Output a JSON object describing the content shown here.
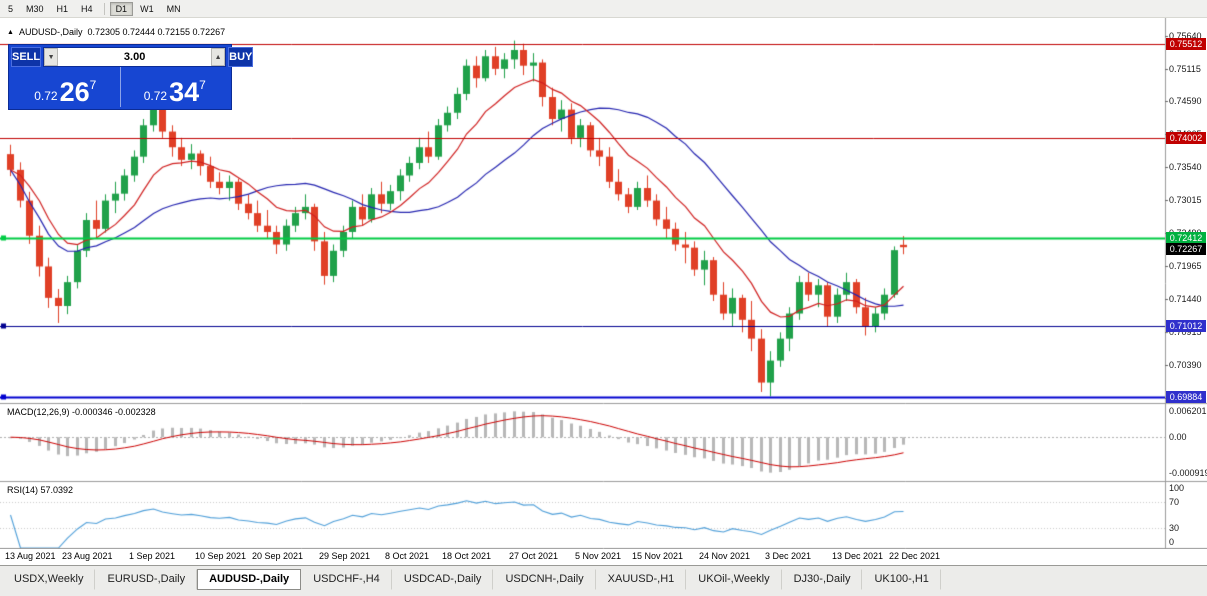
{
  "colors": {
    "candle_up": "#20a14a",
    "candle_down": "#e03f26",
    "ma_fast": "#d02020",
    "ma_slow": "#2424b0",
    "macd_hist": "#b8b8b8",
    "macd_signal": "#cc0000",
    "rsi_line": "#4f9fd9"
  },
  "toolbar": {
    "periods": [
      {
        "label": "5",
        "active": false
      },
      {
        "label": "M30",
        "active": false
      },
      {
        "label": "H1",
        "active": false
      },
      {
        "label": "H4",
        "active": false
      },
      {
        "label": "D1",
        "active": true
      },
      {
        "label": "W1",
        "active": false
      },
      {
        "label": "MN",
        "active": false
      }
    ]
  },
  "chart_header": {
    "direction_icon": "▲",
    "symbol": "AUDUSD-,Daily",
    "ohlc_text": "0.72305 0.72444 0.72155 0.72267"
  },
  "trade_panel": {
    "sell_label": "SELL",
    "buy_label": "BUY",
    "volume": "3.00",
    "sell_price": {
      "base": "0.72",
      "pips": "26",
      "point": "7"
    },
    "buy_price": {
      "base": "0.72",
      "pips": "34",
      "point": "7"
    }
  },
  "indicators": {
    "macd": {
      "label": "MACD(12,26,9) -0.000346 -0.002328",
      "fast": 12,
      "slow": 26,
      "signal_period": 9,
      "scale": [
        "0.006201",
        "0.00",
        "-0.000919"
      ]
    },
    "rsi": {
      "label": "RSI(14) 57.0392",
      "period": 14,
      "levels": [
        70,
        30
      ],
      "scale": [
        "100",
        "70",
        "30",
        "0"
      ]
    }
  },
  "price_scale": {
    "labels": [
      "0.75640",
      "0.75115",
      "0.74590",
      "0.74065",
      "0.73540",
      "0.73015",
      "0.72490",
      "0.71965",
      "0.71440",
      "0.70915",
      "0.70390",
      "0.69865"
    ]
  },
  "levels": [
    {
      "price": "0.75512",
      "color": "#c00000",
      "width": 1,
      "tag_bg": "#c00000",
      "marker": false
    },
    {
      "price": "0.74002",
      "color": "#c00000",
      "width": 1,
      "tag_bg": "#c00000",
      "marker": false
    },
    {
      "price": "0.72412",
      "color": "#00cc44",
      "width": 2,
      "tag_bg": "#00b140",
      "marker": true
    },
    {
      "price": "0.71012",
      "color": "#000090",
      "width": 1,
      "tag_bg": "#3030cc",
      "marker": true
    },
    {
      "price": "0.69884",
      "color": "#0000d0",
      "width": 2,
      "tag_bg": "#3030cc",
      "marker": true
    }
  ],
  "current_price_tag": {
    "price": "0.72267",
    "bg": "#000000"
  },
  "time_axis": [
    {
      "label": "13 Aug 2021",
      "index": 0
    },
    {
      "label": "23 Aug 2021",
      "index": 6
    },
    {
      "label": "1 Sep 2021",
      "index": 13
    },
    {
      "label": "10 Sep 2021",
      "index": 20
    },
    {
      "label": "20 Sep 2021",
      "index": 26
    },
    {
      "label": "29 Sep 2021",
      "index": 33
    },
    {
      "label": "8 Oct 2021",
      "index": 40
    },
    {
      "label": "18 Oct 2021",
      "index": 46
    },
    {
      "label": "27 Oct 2021",
      "index": 53
    },
    {
      "label": "5 Nov 2021",
      "index": 60
    },
    {
      "label": "15 Nov 2021",
      "index": 66
    },
    {
      "label": "24 Nov 2021",
      "index": 73
    },
    {
      "label": "3 Dec 2021",
      "index": 80
    },
    {
      "label": "13 Dec 2021",
      "index": 87
    },
    {
      "label": "22 Dec 2021",
      "index": 93
    }
  ],
  "tabs": [
    {
      "label": "USDX,Weekly",
      "active": false
    },
    {
      "label": "EURUSD-,Daily",
      "active": false
    },
    {
      "label": "AUDUSD-,Daily",
      "active": true
    },
    {
      "label": "USDCHF-,H4",
      "active": false
    },
    {
      "label": "USDCAD-,Daily",
      "active": false
    },
    {
      "label": "USDCNH-,Daily",
      "active": false
    },
    {
      "label": "XAUUSD-,H1",
      "active": false
    },
    {
      "label": "UKOil-,Weekly",
      "active": false
    },
    {
      "label": "DJ30-,Daily",
      "active": false
    },
    {
      "label": "UK100-,H1",
      "active": false
    }
  ],
  "chart_data": {
    "type": "candlestick",
    "symbol": "AUDUSD-",
    "timeframe": "Daily",
    "ohlc_current": {
      "open": 0.72305,
      "high": 0.72444,
      "low": 0.72155,
      "close": 0.72267
    },
    "y_range": [
      0.698,
      0.7592
    ],
    "ma_fast_period": 10,
    "ma_slow_period": 22,
    "candles": [
      [
        0.7375,
        0.739,
        0.734,
        0.735
      ],
      [
        0.735,
        0.7362,
        0.729,
        0.7301
      ],
      [
        0.7301,
        0.7315,
        0.7232,
        0.7245
      ],
      [
        0.7245,
        0.7261,
        0.718,
        0.7196
      ],
      [
        0.7196,
        0.721,
        0.713,
        0.7146
      ],
      [
        0.7146,
        0.716,
        0.7106,
        0.7133
      ],
      [
        0.7133,
        0.7181,
        0.712,
        0.7171
      ],
      [
        0.7171,
        0.723,
        0.7161,
        0.7221
      ],
      [
        0.7221,
        0.7281,
        0.7211,
        0.727
      ],
      [
        0.727,
        0.7301,
        0.7241,
        0.7256
      ],
      [
        0.7256,
        0.7311,
        0.725,
        0.7301
      ],
      [
        0.7301,
        0.7331,
        0.7281,
        0.7312
      ],
      [
        0.7312,
        0.7351,
        0.7301,
        0.7341
      ],
      [
        0.7341,
        0.7381,
        0.7331,
        0.7371
      ],
      [
        0.7371,
        0.7431,
        0.7361,
        0.7421
      ],
      [
        0.7421,
        0.7478,
        0.7411,
        0.7451
      ],
      [
        0.7451,
        0.7462,
        0.7401,
        0.7411
      ],
      [
        0.7411,
        0.7421,
        0.7371,
        0.7386
      ],
      [
        0.7386,
        0.7401,
        0.7356,
        0.7366
      ],
      [
        0.7366,
        0.7391,
        0.7351,
        0.7376
      ],
      [
        0.7376,
        0.7381,
        0.7341,
        0.7356
      ],
      [
        0.7356,
        0.7371,
        0.7321,
        0.7331
      ],
      [
        0.7331,
        0.7346,
        0.7311,
        0.7321
      ],
      [
        0.7321,
        0.7341,
        0.7301,
        0.7331
      ],
      [
        0.7331,
        0.7336,
        0.7286,
        0.7296
      ],
      [
        0.7296,
        0.7311,
        0.7271,
        0.7281
      ],
      [
        0.7281,
        0.7301,
        0.7251,
        0.7261
      ],
      [
        0.7261,
        0.7286,
        0.7241,
        0.7251
      ],
      [
        0.7251,
        0.7261,
        0.7216,
        0.7231
      ],
      [
        0.7231,
        0.7271,
        0.7221,
        0.7261
      ],
      [
        0.7261,
        0.7291,
        0.7251,
        0.7281
      ],
      [
        0.7281,
        0.7311,
        0.7271,
        0.7291
      ],
      [
        0.7291,
        0.7296,
        0.7221,
        0.7236
      ],
      [
        0.7236,
        0.7251,
        0.7167,
        0.7181
      ],
      [
        0.7181,
        0.7231,
        0.7171,
        0.7221
      ],
      [
        0.7221,
        0.7261,
        0.7211,
        0.7251
      ],
      [
        0.7251,
        0.7301,
        0.7241,
        0.7291
      ],
      [
        0.7291,
        0.7311,
        0.7261,
        0.7271
      ],
      [
        0.7271,
        0.7321,
        0.7266,
        0.7311
      ],
      [
        0.7311,
        0.7331,
        0.7281,
        0.7296
      ],
      [
        0.7296,
        0.7326,
        0.7286,
        0.7316
      ],
      [
        0.7316,
        0.7351,
        0.7301,
        0.7341
      ],
      [
        0.7341,
        0.7371,
        0.7331,
        0.7361
      ],
      [
        0.7361,
        0.7401,
        0.7351,
        0.7386
      ],
      [
        0.7386,
        0.7411,
        0.7361,
        0.7371
      ],
      [
        0.7371,
        0.7431,
        0.7366,
        0.7421
      ],
      [
        0.7421,
        0.7451,
        0.7411,
        0.7441
      ],
      [
        0.7441,
        0.7481,
        0.7431,
        0.7471
      ],
      [
        0.7471,
        0.7526,
        0.7461,
        0.7516
      ],
      [
        0.7516,
        0.7531,
        0.7481,
        0.7496
      ],
      [
        0.7496,
        0.7541,
        0.7491,
        0.7531
      ],
      [
        0.7531,
        0.7546,
        0.7501,
        0.7511
      ],
      [
        0.7511,
        0.7536,
        0.7496,
        0.7526
      ],
      [
        0.7526,
        0.7556,
        0.7511,
        0.7541
      ],
      [
        0.7541,
        0.7551,
        0.7501,
        0.7516
      ],
      [
        0.7516,
        0.7536,
        0.7491,
        0.7521
      ],
      [
        0.7521,
        0.7526,
        0.7451,
        0.7466
      ],
      [
        0.7466,
        0.7481,
        0.7421,
        0.7431
      ],
      [
        0.7431,
        0.7461,
        0.7411,
        0.7446
      ],
      [
        0.7446,
        0.7456,
        0.7391,
        0.7401
      ],
      [
        0.7401,
        0.7431,
        0.7386,
        0.7421
      ],
      [
        0.7421,
        0.7426,
        0.7371,
        0.7381
      ],
      [
        0.7381,
        0.7401,
        0.7356,
        0.7371
      ],
      [
        0.7371,
        0.7386,
        0.7321,
        0.7331
      ],
      [
        0.7331,
        0.7351,
        0.7301,
        0.7311
      ],
      [
        0.7311,
        0.7321,
        0.7281,
        0.7291
      ],
      [
        0.7291,
        0.7331,
        0.7286,
        0.7321
      ],
      [
        0.7321,
        0.7341,
        0.7291,
        0.7301
      ],
      [
        0.7301,
        0.7311,
        0.7261,
        0.7271
      ],
      [
        0.7271,
        0.7291,
        0.7241,
        0.7256
      ],
      [
        0.7256,
        0.7266,
        0.7221,
        0.7231
      ],
      [
        0.7231,
        0.7251,
        0.7201,
        0.7226
      ],
      [
        0.7226,
        0.7236,
        0.7181,
        0.7191
      ],
      [
        0.7191,
        0.7221,
        0.7166,
        0.7206
      ],
      [
        0.7206,
        0.7211,
        0.7141,
        0.7151
      ],
      [
        0.7151,
        0.7171,
        0.7111,
        0.7121
      ],
      [
        0.7121,
        0.7161,
        0.7101,
        0.7146
      ],
      [
        0.7146,
        0.7151,
        0.7091,
        0.7111
      ],
      [
        0.7111,
        0.7141,
        0.7061,
        0.7081
      ],
      [
        0.7081,
        0.7096,
        0.6996,
        0.7011
      ],
      [
        0.7011,
        0.7061,
        0.6989,
        0.7046
      ],
      [
        0.7046,
        0.7091,
        0.7036,
        0.7081
      ],
      [
        0.7081,
        0.7131,
        0.7061,
        0.7121
      ],
      [
        0.7121,
        0.7181,
        0.7111,
        0.7171
      ],
      [
        0.7171,
        0.7186,
        0.7141,
        0.7151
      ],
      [
        0.7151,
        0.7176,
        0.7131,
        0.7166
      ],
      [
        0.7166,
        0.7171,
        0.7101,
        0.7116
      ],
      [
        0.7116,
        0.7161,
        0.7106,
        0.7151
      ],
      [
        0.7151,
        0.7186,
        0.7141,
        0.7171
      ],
      [
        0.7171,
        0.7176,
        0.7121,
        0.7131
      ],
      [
        0.7131,
        0.7146,
        0.7086,
        0.7101
      ],
      [
        0.7101,
        0.7131,
        0.7091,
        0.7121
      ],
      [
        0.7121,
        0.7161,
        0.7111,
        0.7151
      ],
      [
        0.7151,
        0.7228,
        0.7146,
        0.7222
      ],
      [
        0.72305,
        0.72444,
        0.72155,
        0.72267
      ]
    ]
  }
}
